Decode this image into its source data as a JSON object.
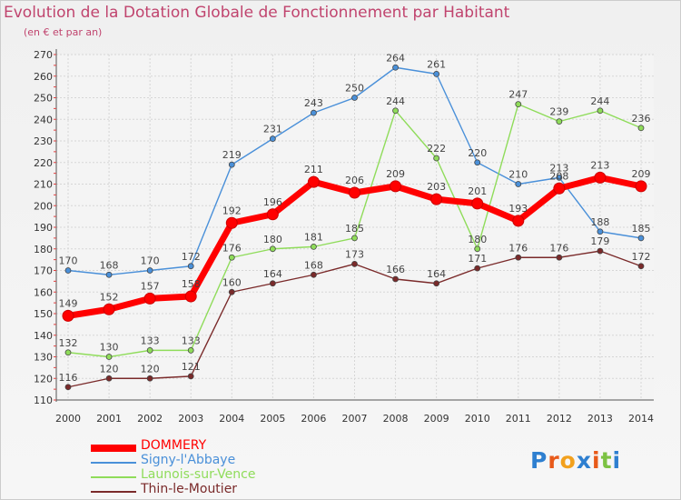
{
  "title": "Evolution de la Dotation Globale de Fonctionnement par Habitant",
  "subtitle": "(en € et par an)",
  "logo": "Proxiti",
  "chart_data": {
    "type": "line",
    "title": "Evolution de la Dotation Globale de Fonctionnement par Habitant",
    "subtitle": "(en € et par an)",
    "x": [
      "2000",
      "2001",
      "2002",
      "2003",
      "2004",
      "2005",
      "2006",
      "2007",
      "2008",
      "2009",
      "2010",
      "2011",
      "2012",
      "2013",
      "2014"
    ],
    "ylim": [
      110,
      270
    ],
    "yticks": [
      110,
      120,
      130,
      140,
      150,
      160,
      170,
      180,
      190,
      200,
      210,
      220,
      230,
      240,
      250,
      260,
      270
    ],
    "grid": true,
    "legend_position": "bottom-left",
    "series": [
      {
        "name": "DOMMERY",
        "color": "#ff0000",
        "values": [
          149,
          152,
          157,
          158,
          192,
          196,
          211,
          206,
          209,
          203,
          201,
          193,
          208,
          213,
          209
        ]
      },
      {
        "name": "Signy-l'Abbaye",
        "color": "#4a90d9",
        "values": [
          170,
          168,
          170,
          172,
          219,
          231,
          243,
          250,
          264,
          261,
          220,
          210,
          213,
          188,
          185
        ]
      },
      {
        "name": "Launois-sur-Vence",
        "color": "#8fdc5a",
        "values": [
          132,
          130,
          133,
          133,
          176,
          180,
          181,
          185,
          244,
          222,
          180,
          247,
          239,
          244,
          236
        ]
      },
      {
        "name": "Thin-le-Moutier",
        "color": "#7a2a2a",
        "values": [
          116,
          120,
          120,
          121,
          160,
          164,
          168,
          173,
          166,
          164,
          171,
          176,
          176,
          179,
          172
        ]
      }
    ]
  }
}
